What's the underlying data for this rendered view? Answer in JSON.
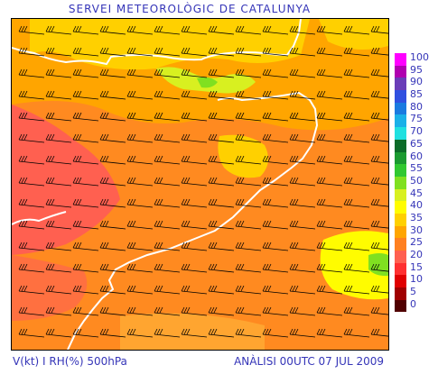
{
  "title": "SERVEI METEOROLÒGIC DE CATALUNYA",
  "footer_left": "V(kt) I RH(%) 500hPa",
  "footer_right": "ANÀLISI 00UTC 07 JUL 2009",
  "legend": [
    {
      "label": "100",
      "color": "#ff00ff"
    },
    {
      "label": "95",
      "color": "#b000b0"
    },
    {
      "label": "90",
      "color": "#6a3db8"
    },
    {
      "label": "85",
      "color": "#3050e0"
    },
    {
      "label": "80",
      "color": "#1a7ae0"
    },
    {
      "label": "75",
      "color": "#1ab0e8"
    },
    {
      "label": "70",
      "color": "#20e0e0"
    },
    {
      "label": "65",
      "color": "#0b6b28"
    },
    {
      "label": "60",
      "color": "#1a9a30"
    },
    {
      "label": "55",
      "color": "#30c830"
    },
    {
      "label": "50",
      "color": "#80e020"
    },
    {
      "label": "45",
      "color": "#d8f020"
    },
    {
      "label": "40",
      "color": "#fffc00"
    },
    {
      "label": "35",
      "color": "#ffd000"
    },
    {
      "label": "30",
      "color": "#ffa500"
    },
    {
      "label": "25",
      "color": "#ff8020"
    },
    {
      "label": "20",
      "color": "#ff6050"
    },
    {
      "label": "15",
      "color": "#ff3030"
    },
    {
      "label": "10",
      "color": "#e00000"
    },
    {
      "label": "5",
      "color": "#a00000"
    },
    {
      "label": "0",
      "color": "#500000"
    }
  ]
}
